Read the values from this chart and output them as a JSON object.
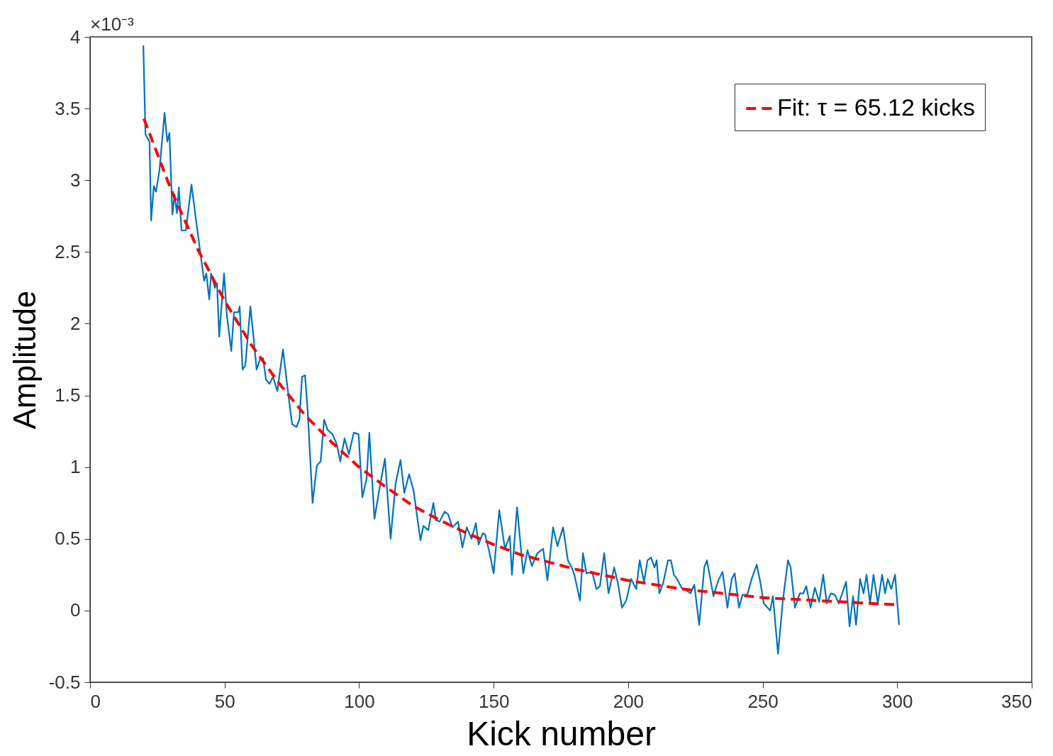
{
  "chart_data": {
    "type": "line",
    "xlabel": "Kick number",
    "ylabel": "Amplitude",
    "annotations": [
      "×10⁻³"
    ],
    "xlim": [
      0,
      350
    ],
    "ylim": [
      -0.5,
      4
    ],
    "xticks": [
      0,
      50,
      100,
      150,
      200,
      250,
      300,
      350
    ],
    "yticks": [
      -0.5,
      0,
      0.5,
      1,
      1.5,
      2,
      2.5,
      3,
      3.5,
      4
    ],
    "grid": false,
    "legend": "top right",
    "series": [
      {
        "color": "#0072bd",
        "line_style": "solid",
        "x": [
          19.8,
          20.6,
          22.1,
          22.7,
          23.7,
          24.5,
          25.8,
          27.7,
          28.7,
          29.5,
          30.6,
          31.4,
          32.3,
          33,
          34,
          35.6,
          37.7,
          39.2,
          41.1,
          42.4,
          43.2,
          44.3,
          45,
          46.4,
          47.2,
          48,
          49.8,
          50.9,
          52.5,
          53.5,
          55.1,
          55.6,
          56.7,
          57.7,
          59.6,
          60.9,
          61.9,
          63.3,
          64.3,
          65.4,
          66.7,
          68,
          69.6,
          71.7,
          73.8,
          75.1,
          76.7,
          77.8,
          78.8,
          79.9,
          80.9,
          82.7,
          84.3,
          85.7,
          87,
          88.3,
          90.1,
          91.7,
          93,
          94.6,
          96.2,
          98,
          99.8,
          101.2,
          102.8,
          103.8,
          105.7,
          107.5,
          109.6,
          111.7,
          113.6,
          115.4,
          116.8,
          118.6,
          120.2,
          122.8,
          123.9,
          125.7,
          127.6,
          128.6,
          129.9,
          131.8,
          133.1,
          134.7,
          136.8,
          138.4,
          140,
          141.8,
          143.4,
          144.4,
          146,
          146.8,
          148.4,
          150,
          152.1,
          154.2,
          156,
          156.8,
          158.7,
          161,
          162.6,
          164.2,
          166.3,
          168.4,
          170,
          172.1,
          173.7,
          175.8,
          177.6,
          179,
          180,
          182.1,
          183.2,
          184.5,
          186.6,
          188.2,
          189.5,
          191.1,
          192.7,
          194.8,
          196.1,
          197.7,
          199.3,
          201.1,
          203,
          204.3,
          205.9,
          207.2,
          208.5,
          209.8,
          210.6,
          211.6,
          213,
          214.8,
          215.9,
          217,
          218.2,
          220.1,
          221.7,
          223.2,
          224.6,
          226.4,
          228.3,
          229.3,
          231.7,
          233.5,
          235.1,
          236.9,
          238.5,
          239.6,
          241.2,
          242.5,
          244.3,
          245.9,
          247.8,
          249.1,
          250.4,
          252.8,
          253.8,
          255.7,
          257.5,
          259.4,
          260.4,
          262,
          263.8,
          265.1,
          266.2,
          267.8,
          269.4,
          271,
          272.5,
          273.8,
          275.4,
          276.8,
          278.3,
          279.4,
          281,
          282.3,
          283.6,
          284.7,
          286.2,
          287.5,
          288.6,
          289.9,
          291.2,
          292.8,
          294.4,
          295.5,
          296.5,
          297.8,
          299.2,
          300.7
        ],
        "values": [
          3.94,
          3.32,
          3.27,
          2.72,
          2.96,
          2.92,
          3.07,
          3.47,
          3.27,
          3.33,
          2.76,
          2.9,
          2.77,
          2.95,
          2.65,
          2.65,
          2.97,
          2.75,
          2.48,
          2.3,
          2.35,
          2.17,
          2.35,
          2.25,
          2.28,
          1.91,
          2.35,
          2.05,
          1.81,
          2.08,
          2.08,
          2.12,
          1.68,
          1.71,
          2.12,
          1.88,
          1.68,
          1.76,
          1.76,
          1.61,
          1.58,
          1.63,
          1.53,
          1.82,
          1.49,
          1.3,
          1.28,
          1.33,
          1.63,
          1.64,
          1.39,
          0.75,
          1.01,
          1.04,
          1.33,
          1.26,
          1.23,
          1.16,
          1.04,
          1.2,
          1.09,
          1.24,
          1.23,
          0.79,
          0.92,
          1.24,
          0.64,
          0.84,
          1.06,
          0.5,
          0.89,
          1.05,
          0.82,
          0.95,
          0.84,
          0.49,
          0.59,
          0.56,
          0.75,
          0.63,
          0.62,
          0.69,
          0.67,
          0.58,
          0.62,
          0.44,
          0.58,
          0.5,
          0.61,
          0.46,
          0.54,
          0.53,
          0.41,
          0.26,
          0.7,
          0.43,
          0.52,
          0.25,
          0.72,
          0.26,
          0.42,
          0.31,
          0.4,
          0.43,
          0.21,
          0.58,
          0.45,
          0.58,
          0.35,
          0.3,
          0.25,
          0.07,
          0.4,
          0.26,
          0.27,
          0.15,
          0.17,
          0.4,
          0.12,
          0.3,
          0.2,
          0.02,
          0.07,
          0.22,
          0.15,
          0.35,
          0.2,
          0.35,
          0.37,
          0.3,
          0.35,
          0.12,
          0.19,
          0.35,
          0.35,
          0.25,
          0.22,
          0.15,
          0.14,
          0.12,
          0.18,
          -0.1,
          0.3,
          0.35,
          0.1,
          0.21,
          0.27,
          0.02,
          0.22,
          0.26,
          0.02,
          0.11,
          0.11,
          0.22,
          0.32,
          0.2,
          0.05,
          0,
          0.1,
          -0.3,
          0.07,
          0.35,
          0.3,
          0.02,
          0.12,
          0.12,
          0.17,
          0.02,
          0.16,
          0.06,
          0.25,
          0.05,
          0.12,
          0.11,
          0.05,
          0.11,
          0.2,
          -0.11,
          0.1,
          -0.1,
          0.22,
          0.12,
          0.25,
          0.05,
          0.25,
          0.05,
          0.25,
          0.12,
          0.22,
          0.15,
          0.25,
          -0.1
        ]
      },
      {
        "type": "line",
        "name": "Fit: τ = 65.12 kicks",
        "color": "#ff0000",
        "line_style": "dashed",
        "x": [
          20,
          30,
          40,
          50,
          60,
          70,
          80,
          90,
          100,
          110,
          120,
          130,
          140,
          150,
          160,
          170,
          180,
          190,
          200,
          210,
          220,
          230,
          240,
          250,
          260,
          270,
          280,
          290,
          300
        ],
        "values": [
          3.43,
          2.94,
          2.52,
          2.16,
          1.85,
          1.59,
          1.36,
          1.17,
          1,
          0.86,
          0.73,
          0.63,
          0.54,
          0.46,
          0.39,
          0.34,
          0.29,
          0.25,
          0.21,
          0.18,
          0.15,
          0.13,
          0.11,
          0.09,
          0.08,
          0.07,
          0.06,
          0.05,
          0.04
        ]
      }
    ]
  }
}
